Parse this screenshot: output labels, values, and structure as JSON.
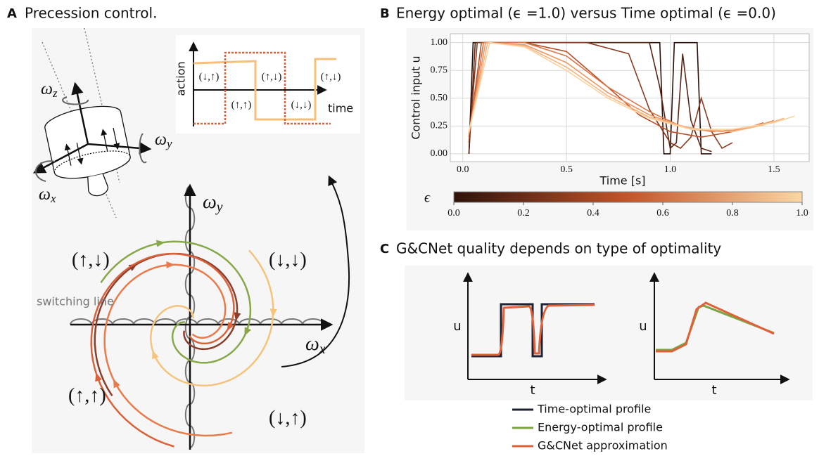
{
  "panel_a": {
    "letter": "A",
    "title": "Precession control.",
    "body_axes": [
      {
        "symbol": "ω",
        "sub": "z"
      },
      {
        "symbol": "ω",
        "sub": "y"
      },
      {
        "symbol": "ω",
        "sub": "x"
      }
    ],
    "action_inset": {
      "y_label": "action",
      "x_label": "time",
      "states": [
        "(↓,↑)",
        "(↑,↑)",
        "(↑,↓)",
        "(↓,↓)",
        "(↑,↓)"
      ]
    },
    "phase_plane": {
      "x_axis": {
        "symbol": "ω",
        "sub": "x"
      },
      "y_axis": {
        "symbol": "ω",
        "sub": "y"
      },
      "quadrants": [
        "(↑,↓)",
        "(↓,↓)",
        "(↑,↑)",
        "(↓,↑)"
      ],
      "switching_line": "switching line"
    }
  },
  "chart_data": {
    "type": "line",
    "panel_letter": "B",
    "title": "Energy optimal (ϵ =1.0) versus Time optimal (ϵ =0.0)",
    "x_label": "Time [s]",
    "y_label": "Control input u",
    "xlim": [
      -0.06,
      1.67
    ],
    "ylim": [
      -0.07,
      1.08
    ],
    "xticks": [
      {
        "value": 0,
        "label": "0.0"
      },
      {
        "value": 0.5,
        "label": "0.5"
      },
      {
        "value": 1,
        "label": "1.0"
      },
      {
        "value": 1.5,
        "label": "1.5"
      }
    ],
    "yticks": [
      {
        "value": 0,
        "label": "0.00"
      },
      {
        "value": 0.25,
        "label": "0.25"
      },
      {
        "value": 0.5,
        "label": "0.50"
      },
      {
        "value": 0.75,
        "label": "0.75"
      },
      {
        "value": 1,
        "label": "1.00"
      }
    ],
    "grid": true,
    "series": [
      {
        "color": "#2a0f08",
        "x": [
          0.03,
          0.05,
          0.95,
          0.97,
          1.0,
          1.02,
          1.13,
          1.15,
          1.2
        ],
        "values": [
          0.0,
          1.0,
          1.0,
          0.0,
          0.0,
          1.0,
          1.0,
          0.0,
          0.0
        ]
      },
      {
        "color": "#5a2414",
        "x": [
          0.03,
          0.06,
          0.9,
          0.95,
          1.0,
          1.03,
          1.06,
          1.1,
          1.15,
          1.2
        ],
        "values": [
          0.0,
          1.0,
          1.0,
          0.6,
          0.05,
          0.1,
          0.9,
          0.3,
          0.05,
          0.02
        ]
      },
      {
        "color": "#8a3a1e",
        "x": [
          0.03,
          0.07,
          0.3,
          0.6,
          0.8,
          0.9,
          1.0,
          1.05,
          1.1,
          1.15,
          1.2,
          1.25,
          1.3
        ],
        "values": [
          0.1,
          1.0,
          1.0,
          1.0,
          0.9,
          0.4,
          0.1,
          0.05,
          0.15,
          0.5,
          0.2,
          0.05,
          0.1
        ]
      },
      {
        "color": "#b8512a",
        "x": [
          0.03,
          0.09,
          0.3,
          0.5,
          0.7,
          0.85,
          1.0,
          1.15,
          1.3,
          1.4
        ],
        "values": [
          0.15,
          1.0,
          1.0,
          0.92,
          0.6,
          0.35,
          0.2,
          0.15,
          0.2,
          0.25
        ]
      },
      {
        "color": "#db7447",
        "x": [
          0.03,
          0.1,
          0.3,
          0.5,
          0.7,
          0.9,
          1.05,
          1.2,
          1.35,
          1.45
        ],
        "values": [
          0.18,
          1.0,
          1.0,
          0.88,
          0.6,
          0.38,
          0.25,
          0.2,
          0.22,
          0.28
        ]
      },
      {
        "color": "#ee9764",
        "x": [
          0.03,
          0.11,
          0.3,
          0.5,
          0.7,
          0.9,
          1.1,
          1.25,
          1.4,
          1.5
        ],
        "values": [
          0.18,
          1.0,
          0.98,
          0.82,
          0.55,
          0.35,
          0.22,
          0.2,
          0.24,
          0.3
        ]
      },
      {
        "color": "#f6b683",
        "x": [
          0.03,
          0.12,
          0.3,
          0.5,
          0.7,
          0.9,
          1.1,
          1.3,
          1.45,
          1.55
        ],
        "values": [
          0.2,
          1.0,
          0.97,
          0.78,
          0.52,
          0.33,
          0.23,
          0.2,
          0.26,
          0.32
        ]
      },
      {
        "color": "#fbd3a0",
        "x": [
          0.03,
          0.13,
          0.3,
          0.5,
          0.7,
          0.9,
          1.1,
          1.3,
          1.5,
          1.6
        ],
        "values": [
          0.2,
          1.0,
          0.96,
          0.75,
          0.5,
          0.32,
          0.22,
          0.22,
          0.28,
          0.34
        ]
      }
    ],
    "colorbar": {
      "label": "ϵ",
      "lim": [
        0,
        1
      ],
      "ticks": [
        {
          "value": 0,
          "label": "0.0"
        },
        {
          "value": 0.2,
          "label": "0.2"
        },
        {
          "value": 0.4,
          "label": "0.4"
        },
        {
          "value": 0.6,
          "label": "0.6"
        },
        {
          "value": 0.8,
          "label": "0.8"
        },
        {
          "value": 1,
          "label": "1.0"
        }
      ],
      "colors": [
        "#2e120a",
        "#c4552a",
        "#fbd7a4"
      ]
    }
  },
  "panel_c": {
    "letter": "C",
    "title": "G&CNet quality depends on type of optimality",
    "plots": [
      {
        "y_label": "u",
        "x_label": "t"
      },
      {
        "y_label": "u",
        "x_label": "t"
      }
    ],
    "legend": [
      {
        "label": "Time-optimal profile",
        "color": "#1a2233"
      },
      {
        "label": "Energy-optimal profile",
        "color": "#7aa641"
      },
      {
        "label": "G&CNet approximation",
        "color": "#e0603a"
      }
    ]
  }
}
